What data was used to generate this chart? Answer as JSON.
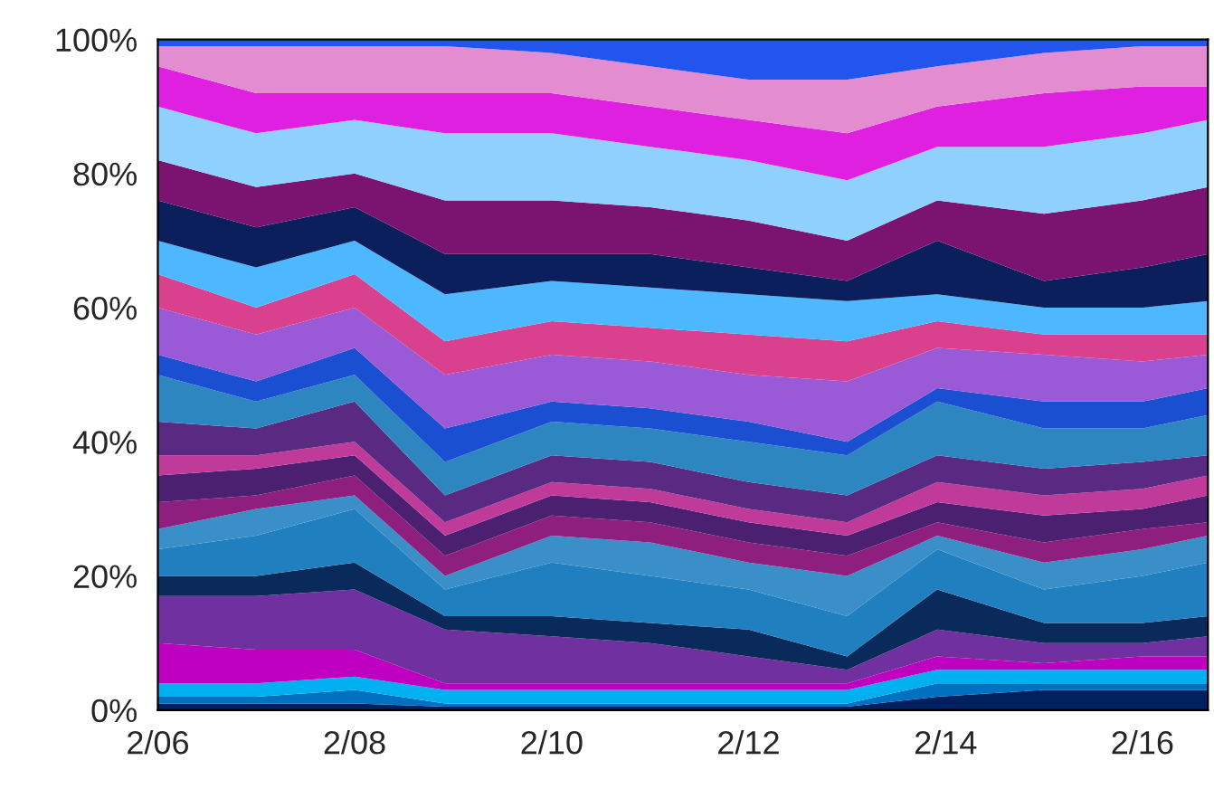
{
  "chart_data": {
    "type": "area",
    "stacked": true,
    "x": [
      "2006-02",
      "2007-02",
      "2008-02",
      "2009-01",
      "2010-02",
      "2011-02",
      "2012-02",
      "2013-02",
      "2014-01",
      "2015-02",
      "2016-02",
      "2016-10"
    ],
    "xlim": [
      "2006-02",
      "2016-10"
    ],
    "xticks": [
      {
        "value": "2006-02",
        "label": "2/06"
      },
      {
        "value": "2008-02",
        "label": "2/08"
      },
      {
        "value": "2010-02",
        "label": "2/10"
      },
      {
        "value": "2012-02",
        "label": "2/12"
      },
      {
        "value": "2014-02",
        "label": "2/14"
      },
      {
        "value": "2016-02",
        "label": "2/16"
      }
    ],
    "ylim": [
      0,
      100
    ],
    "yticks": [
      {
        "value": 0,
        "label": "0%"
      },
      {
        "value": 20,
        "label": "20%"
      },
      {
        "value": 40,
        "label": "40%"
      },
      {
        "value": 60,
        "label": "60%"
      },
      {
        "value": 80,
        "label": "80%"
      },
      {
        "value": 100,
        "label": "100%"
      }
    ],
    "grid": false,
    "series": [
      {
        "color": "#002060",
        "values": [
          1,
          1,
          1,
          0.5,
          0.5,
          0.5,
          0.5,
          0.5,
          2,
          3,
          3,
          3
        ]
      },
      {
        "color": "#0070c0",
        "values": [
          1,
          1,
          2,
          0.5,
          0.5,
          0.5,
          0.5,
          0.5,
          2,
          1,
          1,
          1
        ]
      },
      {
        "color": "#00b0f0",
        "values": [
          2,
          2,
          2,
          2,
          2,
          2,
          2,
          2,
          2,
          2,
          2,
          2
        ]
      },
      {
        "color": "#c000c0",
        "values": [
          6,
          5,
          4,
          1,
          1,
          1,
          1,
          1,
          2,
          1,
          2,
          2
        ]
      },
      {
        "color": "#7030a0",
        "values": [
          7,
          8,
          9,
          8,
          7,
          6,
          4,
          2,
          4,
          3,
          2,
          3
        ]
      },
      {
        "color": "#0b2a5c",
        "values": [
          3,
          3,
          4,
          2,
          3,
          3,
          4,
          2,
          6,
          3,
          3,
          3
        ]
      },
      {
        "color": "#1f7fbf",
        "values": [
          4,
          6,
          8,
          4,
          8,
          7,
          6,
          6,
          6,
          5,
          7,
          8
        ]
      },
      {
        "color": "#3a8fc8",
        "values": [
          3,
          4,
          2,
          2,
          4,
          5,
          4,
          6,
          2,
          4,
          4,
          4
        ]
      },
      {
        "color": "#8e1f7e",
        "values": [
          4,
          2,
          3,
          3,
          3,
          3,
          3,
          3,
          2,
          3,
          3,
          2
        ]
      },
      {
        "color": "#4b2070",
        "values": [
          4,
          4,
          3,
          3,
          3,
          3,
          3,
          3,
          3,
          4,
          3,
          4
        ]
      },
      {
        "color": "#c03a9a",
        "values": [
          3,
          2,
          2,
          2,
          2,
          2,
          2,
          2,
          3,
          3,
          3,
          3
        ]
      },
      {
        "color": "#5a2a82",
        "values": [
          5,
          4,
          6,
          4,
          4,
          4,
          4,
          4,
          4,
          4,
          4,
          3
        ]
      },
      {
        "color": "#2e86c1",
        "values": [
          7,
          4,
          4,
          5,
          5,
          5,
          6,
          6,
          8,
          6,
          5,
          6
        ]
      },
      {
        "color": "#1a4fd1",
        "values": [
          3,
          3,
          4,
          5,
          3,
          3,
          3,
          2,
          2,
          4,
          4,
          4
        ]
      },
      {
        "color": "#9a5ad8",
        "values": [
          7,
          7,
          6,
          8,
          7,
          7,
          7,
          9,
          6,
          7,
          6,
          5
        ]
      },
      {
        "color": "#d9418f",
        "values": [
          5,
          4,
          5,
          5,
          5,
          5,
          6,
          6,
          4,
          3,
          4,
          3
        ]
      },
      {
        "color": "#4db8ff",
        "values": [
          5,
          6,
          5,
          7,
          6,
          6,
          6,
          6,
          4,
          4,
          4,
          5
        ]
      },
      {
        "color": "#0a1f5c",
        "values": [
          6,
          6,
          5,
          6,
          4,
          5,
          4,
          3,
          8,
          4,
          6,
          7
        ]
      },
      {
        "color": "#7a1470",
        "values": [
          6,
          6,
          5,
          8,
          8,
          7,
          7,
          6,
          6,
          10,
          10,
          10
        ]
      },
      {
        "color": "#8fd0ff",
        "values": [
          8,
          8,
          8,
          10,
          10,
          9,
          9,
          9,
          8,
          10,
          10,
          10
        ]
      },
      {
        "color": "#e020e0",
        "values": [
          6,
          6,
          4,
          6,
          6,
          6,
          6,
          7,
          6,
          8,
          7,
          5
        ]
      },
      {
        "color": "#e38cd0",
        "values": [
          3,
          7,
          7,
          7,
          6,
          6,
          6,
          8,
          6,
          6,
          6,
          6
        ]
      },
      {
        "color": "#2255ee",
        "values": [
          1,
          1,
          1,
          1,
          2,
          4,
          6,
          6,
          4,
          2,
          1,
          1
        ]
      }
    ]
  }
}
